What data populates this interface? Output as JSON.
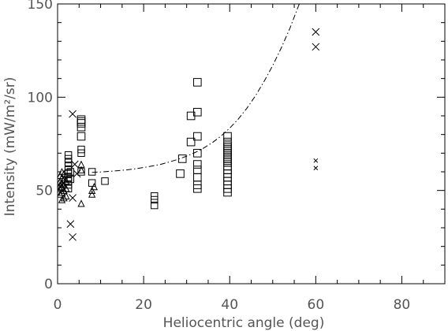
{
  "colors": {
    "axis": "#000000",
    "text": "#555555",
    "points": "#000000",
    "fit_line": "#000000"
  },
  "chart_data": {
    "type": "scatter",
    "title": "",
    "xlabel": "Heliocentric angle (deg)",
    "ylabel": "Intensity (mW/m²/sr)",
    "xlim": [
      0,
      90
    ],
    "ylim": [
      0,
      150
    ],
    "grid": false,
    "x_ticks": [
      0,
      20,
      40,
      60,
      80
    ],
    "y_ticks": [
      0,
      50,
      100,
      150
    ],
    "x_tick_labels": [
      "0",
      "20",
      "40",
      "60",
      "80"
    ],
    "y_tick_labels": [
      "0",
      "50",
      "100",
      "150"
    ],
    "series": [
      {
        "marker": "triangle",
        "points": [
          [
            0.6,
            48
          ],
          [
            0.6,
            51
          ],
          [
            0.6,
            53
          ],
          [
            0.6,
            55
          ],
          [
            0.6,
            58
          ],
          [
            1.0,
            45
          ],
          [
            1.0,
            49
          ],
          [
            1.0,
            52
          ],
          [
            1.0,
            54
          ],
          [
            1.0,
            57
          ],
          [
            1.0,
            60
          ],
          [
            1.5,
            46
          ],
          [
            1.5,
            50
          ],
          [
            1.5,
            53
          ],
          [
            1.5,
            56
          ],
          [
            1.5,
            59
          ],
          [
            2.0,
            47
          ],
          [
            2.0,
            51
          ],
          [
            2.0,
            55
          ],
          [
            5.5,
            43
          ],
          [
            5.5,
            61
          ],
          [
            5.5,
            64
          ],
          [
            8.0,
            48
          ],
          [
            8.0,
            50
          ],
          [
            8.5,
            52
          ]
        ]
      },
      {
        "marker": "square",
        "points": [
          [
            2.5,
            69
          ],
          [
            2.5,
            67
          ],
          [
            2.5,
            65
          ],
          [
            2.5,
            63
          ],
          [
            2.5,
            61
          ],
          [
            2.5,
            59
          ],
          [
            2.5,
            57
          ],
          [
            2.5,
            55
          ],
          [
            2.5,
            53
          ],
          [
            2.5,
            51
          ],
          [
            3.0,
            60
          ],
          [
            3.0,
            56
          ],
          [
            5.5,
            88
          ],
          [
            5.5,
            87
          ],
          [
            5.5,
            86
          ],
          [
            5.5,
            84
          ],
          [
            5.5,
            79
          ],
          [
            5.5,
            72
          ],
          [
            5.5,
            70
          ],
          [
            5.5,
            60
          ],
          [
            8.0,
            60
          ],
          [
            8.0,
            54
          ],
          [
            11.0,
            55
          ],
          [
            22.5,
            47
          ],
          [
            22.5,
            45
          ],
          [
            22.5,
            42
          ],
          [
            29.0,
            67
          ],
          [
            28.5,
            59
          ],
          [
            31.0,
            90
          ],
          [
            31.0,
            76
          ],
          [
            32.5,
            108
          ],
          [
            32.5,
            92
          ],
          [
            32.5,
            79
          ],
          [
            32.5,
            70
          ],
          [
            32.5,
            64
          ],
          [
            32.5,
            61
          ],
          [
            32.5,
            57
          ],
          [
            32.5,
            53
          ],
          [
            32.5,
            51
          ],
          [
            39.5,
            79
          ],
          [
            39.5,
            76
          ],
          [
            39.5,
            74
          ],
          [
            39.5,
            73
          ],
          [
            39.5,
            72
          ],
          [
            39.5,
            71
          ],
          [
            39.5,
            70
          ],
          [
            39.5,
            69
          ],
          [
            39.5,
            68
          ],
          [
            39.5,
            67
          ],
          [
            39.5,
            66
          ],
          [
            39.5,
            65
          ],
          [
            39.5,
            63
          ],
          [
            39.5,
            61
          ],
          [
            39.5,
            59
          ],
          [
            39.5,
            57
          ],
          [
            39.5,
            55
          ],
          [
            39.5,
            53
          ],
          [
            39.5,
            51
          ],
          [
            39.5,
            49
          ]
        ]
      },
      {
        "marker": "cross",
        "points": [
          [
            3.5,
            91
          ],
          [
            4.0,
            64
          ],
          [
            4.5,
            59
          ],
          [
            3.5,
            46
          ],
          [
            3.0,
            32
          ],
          [
            3.5,
            25
          ],
          [
            60.0,
            135
          ],
          [
            60.0,
            127
          ],
          [
            60.0,
            66
          ],
          [
            60.0,
            62
          ]
        ]
      }
    ],
    "fit_curve": {
      "style": "dash-dot",
      "points": [
        [
          8,
          59.7
        ],
        [
          10,
          59.9
        ],
        [
          12,
          60.2
        ],
        [
          14,
          60.6
        ],
        [
          16,
          61.0
        ],
        [
          18,
          61.6
        ],
        [
          20,
          62.3
        ],
        [
          22,
          63.1
        ],
        [
          24,
          64.0
        ],
        [
          26,
          65.3
        ],
        [
          28,
          66.7
        ],
        [
          30,
          68.4
        ],
        [
          32,
          70.4
        ],
        [
          34,
          72.8
        ],
        [
          36,
          75.7
        ],
        [
          38,
          79.2
        ],
        [
          40,
          83.4
        ],
        [
          42,
          88.3
        ],
        [
          44,
          94.1
        ],
        [
          46,
          100.8
        ],
        [
          48,
          108.5
        ],
        [
          50,
          117.0
        ],
        [
          52,
          126.5
        ],
        [
          54,
          137.0
        ],
        [
          56,
          149.0
        ],
        [
          57,
          155.0
        ],
        [
          58,
          161.0
        ],
        [
          59,
          167.0
        ],
        [
          60,
          173.0
        ],
        [
          62,
          184.0
        ],
        [
          64,
          196.0
        ],
        [
          65,
          202.0
        ],
        [
          66,
          208.0
        ],
        [
          67,
          214.0
        ]
      ]
    }
  }
}
